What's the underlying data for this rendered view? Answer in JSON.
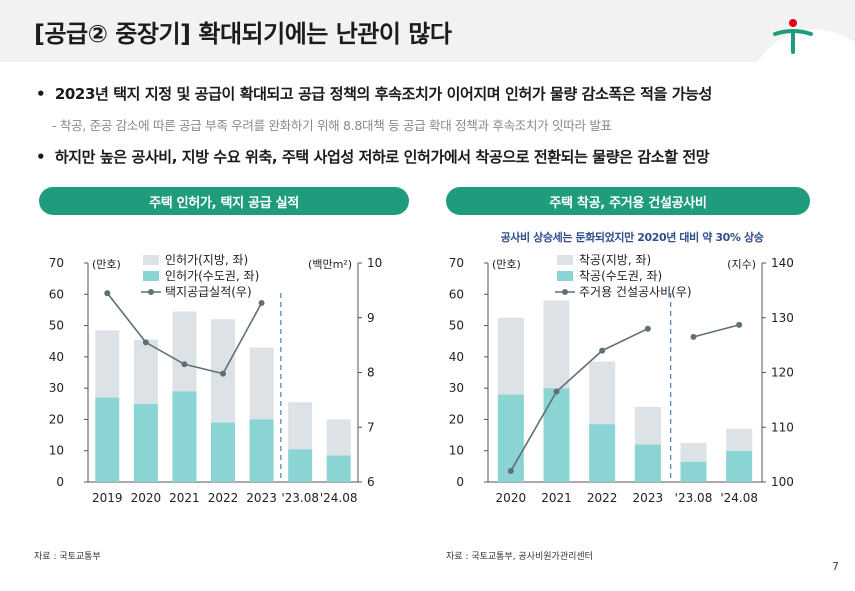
{
  "title": "[공급② 중장기] 확대되기에는 난관이 많다",
  "bullets": {
    "b1": "2023년 택지 지정 및 공급이 확대되고 공급 정책의 후속조치가 이어지며 인허가 물량 감소폭은 적을 가능성",
    "sub1": "- 착공, 준공 감소에 따른 공급 부족 우려를 완화하기 위해 8.8대책 등 공급 확대 정책과 후속조치가 잇따라 발표",
    "b2": "하지만 높은 공사비, 지방 수요 위축, 주택 사업성 저하로 인허가에서 착공으로 전환되는 물량은 감소할 전망"
  },
  "colors": {
    "accent": "#1f9b7e",
    "bar_light": "#dde2e7",
    "bar_teal": "#8ad4d4",
    "line": "#5f7077"
  },
  "chart_data": [
    {
      "type": "bar",
      "panel_title": "주택 인허가, 택지 공급 실적",
      "categories": [
        "2019",
        "2020",
        "2021",
        "2022",
        "2023",
        "'23.08",
        "'24.08"
      ],
      "series": [
        {
          "name": "인허가(수도권, 좌)",
          "kind": "stacked_bar",
          "values": [
            27,
            25,
            29,
            19,
            20,
            10.5,
            8.5
          ]
        },
        {
          "name": "인허가(지방, 좌)",
          "kind": "stacked_bar",
          "values": [
            21.5,
            20.5,
            25.5,
            33,
            23,
            15,
            11.5
          ]
        },
        {
          "name": "택지공급실적(우)",
          "kind": "line",
          "axis": "right",
          "values": [
            9.45,
            8.55,
            8.15,
            7.98,
            9.27,
            null,
            null
          ]
        }
      ],
      "ylabel_left": "(만호)",
      "ylabel_right": "(백만m²)",
      "ylim_left": [
        0,
        70
      ],
      "yticks_left": [
        0,
        10,
        20,
        30,
        40,
        50,
        60,
        70
      ],
      "ylim_right": [
        6,
        10
      ],
      "yticks_right": [
        6,
        7,
        8,
        9,
        10
      ],
      "legend": [
        "인허가(지방, 좌)",
        "인허가(수도권, 좌)",
        "택지공급실적(우)"
      ],
      "source": "자료 : 국토교통부"
    },
    {
      "type": "bar",
      "panel_title": "주택 착공, 주거용 건설공사비",
      "annotation": "공사비 상승세는 둔화되었지만 2020년 대비 약 30% 상승",
      "categories": [
        "2020",
        "2021",
        "2022",
        "2023",
        "'23.08",
        "'24.08"
      ],
      "series": [
        {
          "name": "착공(수도권, 좌)",
          "kind": "stacked_bar",
          "values": [
            28,
            30,
            18.5,
            12,
            6.5,
            10
          ]
        },
        {
          "name": "착공(지방, 좌)",
          "kind": "stacked_bar",
          "values": [
            24.5,
            28,
            20,
            12,
            6,
            7
          ]
        },
        {
          "name": "주거용 건설공사비(우)",
          "kind": "line",
          "axis": "right",
          "values": [
            102,
            116.5,
            124,
            128,
            126.5,
            128.7
          ]
        }
      ],
      "ylabel_left": "(만호)",
      "ylabel_right": "(지수)",
      "ylim_left": [
        0,
        70
      ],
      "yticks_left": [
        0,
        10,
        20,
        30,
        40,
        50,
        60,
        70
      ],
      "ylim_right": [
        100,
        140
      ],
      "yticks_right": [
        100,
        110,
        120,
        130,
        140
      ],
      "legend": [
        "착공(지방, 좌)",
        "착공(수도권, 좌)",
        "주거용 건설공사비(우)"
      ],
      "source": "자료 : 국토교통부, 공사비원가관리센터"
    }
  ],
  "page_number": "7"
}
